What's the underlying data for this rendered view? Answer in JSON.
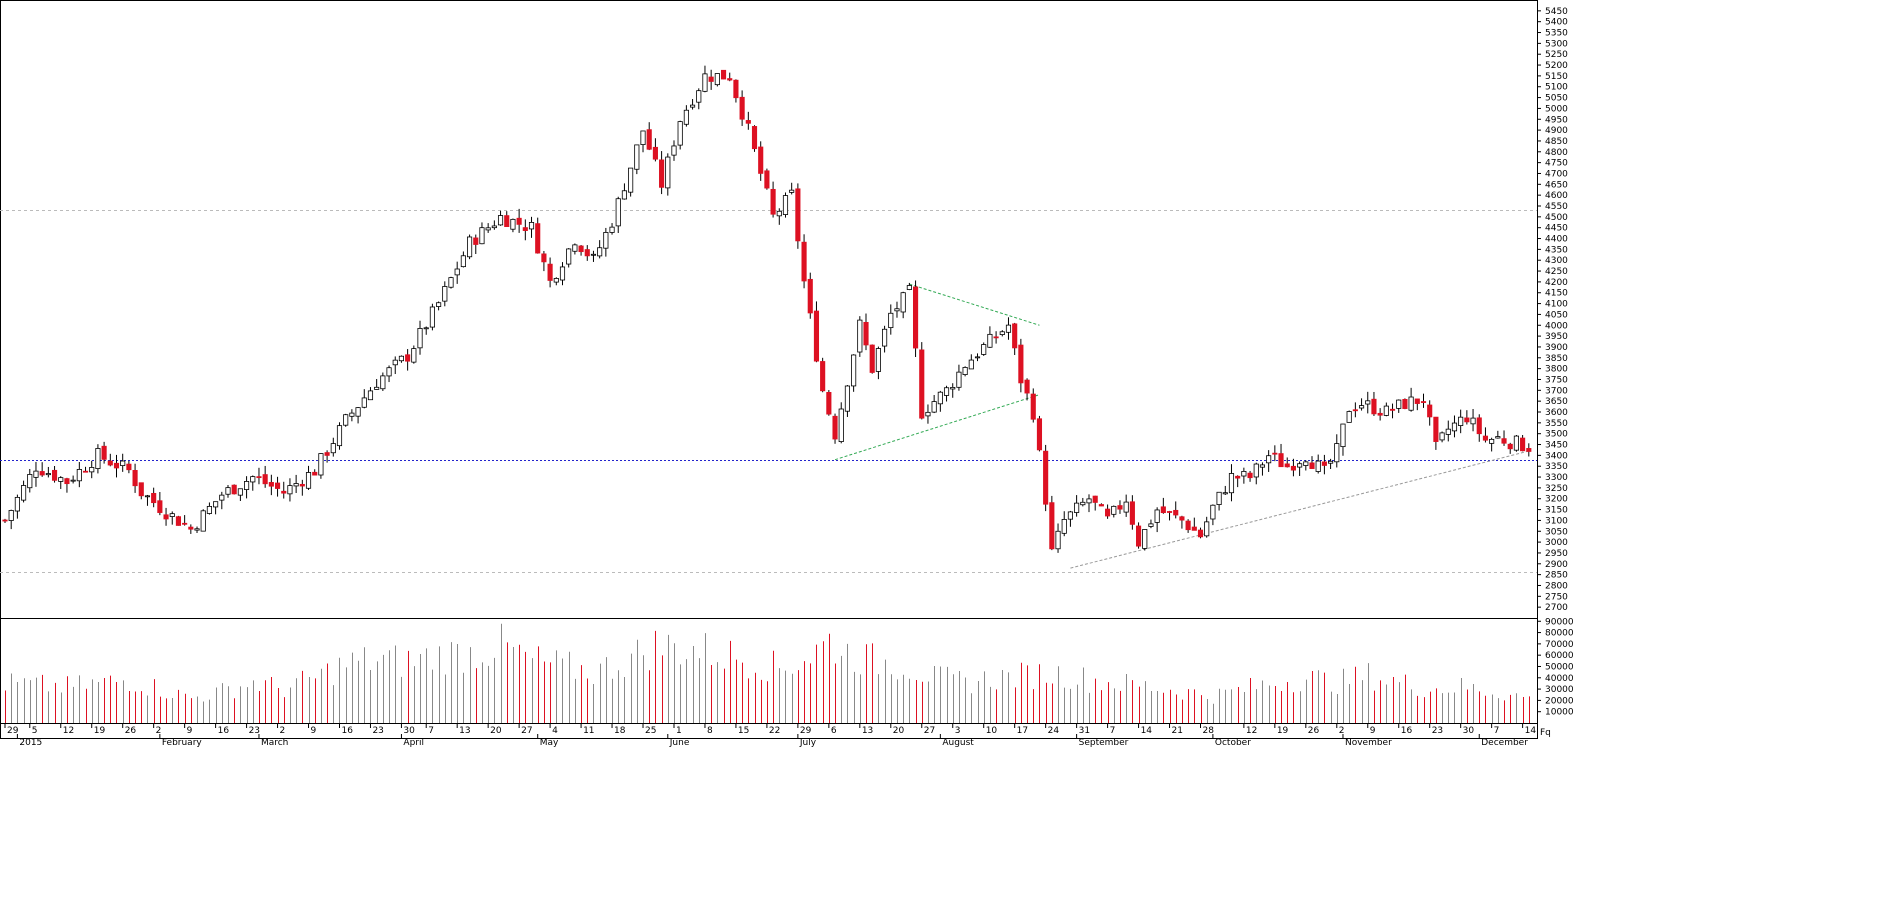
{
  "chart_data": {
    "type": "candlestick",
    "title": "",
    "price_axis": {
      "ylim": [
        2650,
        5500
      ],
      "ticks": [
        "5450",
        "5400",
        "5350",
        "5300",
        "5250",
        "5200",
        "5150",
        "5100",
        "5050",
        "5000",
        "4950",
        "4900",
        "4850",
        "4800",
        "4750",
        "4700",
        "4650",
        "4600",
        "4550",
        "4500",
        "4450",
        "4400",
        "4350",
        "4300",
        "4250",
        "4200",
        "4150",
        "4100",
        "4050",
        "4000",
        "3950",
        "3900",
        "3850",
        "3800",
        "3750",
        "3700",
        "3650",
        "3600",
        "3550",
        "3500",
        "3450",
        "3400",
        "3350",
        "3300",
        "3250",
        "3200",
        "3150",
        "3100",
        "3050",
        "3000",
        "2950",
        "2900",
        "2850",
        "2800",
        "2750",
        "2700"
      ]
    },
    "volume_axis": {
      "ylim": [
        0,
        92000
      ],
      "ticks": [
        "90000",
        "80000",
        "70000",
        "60000",
        "50000",
        "40000",
        "30000",
        "20000",
        "10000"
      ],
      "unit_label": "Fq"
    },
    "x_axis": {
      "day_labels": [
        {
          "label": "29",
          "idx": 0
        },
        {
          "label": "5",
          "idx": 4
        },
        {
          "label": "12",
          "idx": 9
        },
        {
          "label": "19",
          "idx": 14
        },
        {
          "label": "26",
          "idx": 19
        },
        {
          "label": "2",
          "idx": 24
        },
        {
          "label": "9",
          "idx": 29
        },
        {
          "label": "16",
          "idx": 34
        },
        {
          "label": "23",
          "idx": 39
        },
        {
          "label": "2",
          "idx": 44
        },
        {
          "label": "9",
          "idx": 49
        },
        {
          "label": "16",
          "idx": 54
        },
        {
          "label": "23",
          "idx": 59
        },
        {
          "label": "30",
          "idx": 64
        },
        {
          "label": "7",
          "idx": 68
        },
        {
          "label": "13",
          "idx": 73
        },
        {
          "label": "20",
          "idx": 78
        },
        {
          "label": "27",
          "idx": 83
        },
        {
          "label": "4",
          "idx": 88
        },
        {
          "label": "11",
          "idx": 93
        },
        {
          "label": "18",
          "idx": 98
        },
        {
          "label": "25",
          "idx": 103
        },
        {
          "label": "1",
          "idx": 108
        },
        {
          "label": "8",
          "idx": 113
        },
        {
          "label": "15",
          "idx": 118
        },
        {
          "label": "22",
          "idx": 123
        },
        {
          "label": "29",
          "idx": 128
        },
        {
          "label": "6",
          "idx": 133
        },
        {
          "label": "13",
          "idx": 138
        },
        {
          "label": "20",
          "idx": 143
        },
        {
          "label": "27",
          "idx": 148
        },
        {
          "label": "3",
          "idx": 153
        },
        {
          "label": "10",
          "idx": 158
        },
        {
          "label": "17",
          "idx": 163
        },
        {
          "label": "24",
          "idx": 168
        },
        {
          "label": "31",
          "idx": 173
        },
        {
          "label": "7",
          "idx": 178
        },
        {
          "label": "14",
          "idx": 183
        },
        {
          "label": "21",
          "idx": 188
        },
        {
          "label": "28",
          "idx": 193
        },
        {
          "label": "12",
          "idx": 200
        },
        {
          "label": "19",
          "idx": 205
        },
        {
          "label": "26",
          "idx": 210
        },
        {
          "label": "2",
          "idx": 215
        },
        {
          "label": "9",
          "idx": 220
        },
        {
          "label": "16",
          "idx": 225
        },
        {
          "label": "23",
          "idx": 230
        },
        {
          "label": "30",
          "idx": 235
        },
        {
          "label": "7",
          "idx": 240
        },
        {
          "label": "14",
          "idx": 245
        }
      ],
      "month_labels": [
        {
          "label": "2015",
          "idx": 2
        },
        {
          "label": "February",
          "idx": 25
        },
        {
          "label": "March",
          "idx": 41
        },
        {
          "label": "April",
          "idx": 64
        },
        {
          "label": "May",
          "idx": 86
        },
        {
          "label": "June",
          "idx": 107
        },
        {
          "label": "July",
          "idx": 128
        },
        {
          "label": "August",
          "idx": 151
        },
        {
          "label": "September",
          "idx": 173
        },
        {
          "label": "October",
          "idx": 195
        },
        {
          "label": "November",
          "idx": 216
        },
        {
          "label": "December",
          "idx": 238
        }
      ]
    },
    "reference_lines": [
      {
        "name": "support-3380",
        "value": 3380,
        "style": "dotted",
        "color": "#2222cc"
      },
      {
        "name": "level-4530",
        "value": 4530,
        "style": "dashed",
        "color": "#bbbbbb"
      },
      {
        "name": "level-2860",
        "value": 2860,
        "style": "dashed",
        "color": "#bbbbbb"
      }
    ],
    "trendlines": [
      {
        "name": "triangle-upper",
        "color": "#33aa55",
        "from": {
          "idx": 146,
          "price": 4190
        },
        "to": {
          "idx": 167,
          "price": 4000
        }
      },
      {
        "name": "triangle-lower",
        "color": "#33aa55",
        "from": {
          "idx": 134,
          "price": 3380
        },
        "to": {
          "idx": 167,
          "price": 3680
        }
      },
      {
        "name": "rising-support",
        "color": "#999999",
        "from": {
          "idx": 172,
          "price": 2880
        },
        "to": {
          "idx": 246,
          "price": 3420
        }
      }
    ],
    "colors": {
      "up": "#ffffff",
      "down": "#dd1122",
      "filled_up": "#000000",
      "wick": "#000000",
      "grid": "#bbbbbb"
    },
    "anchors": [
      [
        0,
        3100
      ],
      [
        5,
        3350
      ],
      [
        10,
        3280
      ],
      [
        15,
        3400
      ],
      [
        20,
        3330
      ],
      [
        22,
        3230
      ],
      [
        26,
        3140
      ],
      [
        30,
        3060
      ],
      [
        35,
        3220
      ],
      [
        40,
        3300
      ],
      [
        45,
        3230
      ],
      [
        50,
        3330
      ],
      [
        55,
        3560
      ],
      [
        60,
        3740
      ],
      [
        65,
        3860
      ],
      [
        70,
        4100
      ],
      [
        75,
        4380
      ],
      [
        80,
        4500
      ],
      [
        85,
        4450
      ],
      [
        88,
        4200
      ],
      [
        92,
        4400
      ],
      [
        95,
        4300
      ],
      [
        98,
        4480
      ],
      [
        103,
        4900
      ],
      [
        106,
        4650
      ],
      [
        109,
        4950
      ],
      [
        113,
        5150
      ],
      [
        117,
        5150
      ],
      [
        120,
        4900
      ],
      [
        124,
        4500
      ],
      [
        127,
        4600
      ],
      [
        129,
        4200
      ],
      [
        132,
        3700
      ],
      [
        134,
        3500
      ],
      [
        138,
        4000
      ],
      [
        140,
        3800
      ],
      [
        143,
        4050
      ],
      [
        146,
        4150
      ],
      [
        148,
        3600
      ],
      [
        152,
        3700
      ],
      [
        155,
        3820
      ],
      [
        158,
        3900
      ],
      [
        162,
        4000
      ],
      [
        164,
        3750
      ],
      [
        166,
        3600
      ],
      [
        168,
        3200
      ],
      [
        169,
        2950
      ],
      [
        171,
        3100
      ],
      [
        175,
        3200
      ],
      [
        178,
        3100
      ],
      [
        181,
        3200
      ],
      [
        183,
        3000
      ],
      [
        186,
        3150
      ],
      [
        190,
        3100
      ],
      [
        193,
        3030
      ],
      [
        195,
        3160
      ],
      [
        198,
        3300
      ],
      [
        201,
        3300
      ],
      [
        204,
        3400
      ],
      [
        207,
        3350
      ],
      [
        210,
        3400
      ],
      [
        213,
        3320
      ],
      [
        215,
        3420
      ],
      [
        217,
        3620
      ],
      [
        219,
        3640
      ],
      [
        223,
        3600
      ],
      [
        226,
        3640
      ],
      [
        229,
        3660
      ],
      [
        231,
        3430
      ],
      [
        233,
        3520
      ],
      [
        236,
        3580
      ],
      [
        239,
        3470
      ],
      [
        241,
        3480
      ],
      [
        246,
        3440
      ]
    ],
    "volume_anchors": [
      [
        0,
        35000
      ],
      [
        10,
        32000
      ],
      [
        20,
        38000
      ],
      [
        25,
        30000
      ],
      [
        30,
        22000
      ],
      [
        35,
        28000
      ],
      [
        40,
        36000
      ],
      [
        45,
        30000
      ],
      [
        50,
        40000
      ],
      [
        55,
        52000
      ],
      [
        60,
        56000
      ],
      [
        65,
        54000
      ],
      [
        70,
        60000
      ],
      [
        75,
        62000
      ],
      [
        80,
        68000
      ],
      [
        85,
        55000
      ],
      [
        90,
        50000
      ],
      [
        95,
        45000
      ],
      [
        100,
        55000
      ],
      [
        105,
        68000
      ],
      [
        110,
        66000
      ],
      [
        115,
        62000
      ],
      [
        120,
        56000
      ],
      [
        125,
        48000
      ],
      [
        130,
        60000
      ],
      [
        133,
        72000
      ],
      [
        136,
        62000
      ],
      [
        140,
        55000
      ],
      [
        145,
        52000
      ],
      [
        150,
        40000
      ],
      [
        155,
        36000
      ],
      [
        160,
        40000
      ],
      [
        165,
        42000
      ],
      [
        168,
        44000
      ],
      [
        172,
        42000
      ],
      [
        175,
        38000
      ],
      [
        180,
        35000
      ],
      [
        185,
        32000
      ],
      [
        190,
        28000
      ],
      [
        195,
        24000
      ],
      [
        200,
        30000
      ],
      [
        205,
        36000
      ],
      [
        210,
        40000
      ],
      [
        215,
        36000
      ],
      [
        220,
        42000
      ],
      [
        225,
        36000
      ],
      [
        230,
        30000
      ],
      [
        235,
        32000
      ],
      [
        240,
        28000
      ],
      [
        246,
        22000
      ]
    ],
    "n_bars": 247
  }
}
